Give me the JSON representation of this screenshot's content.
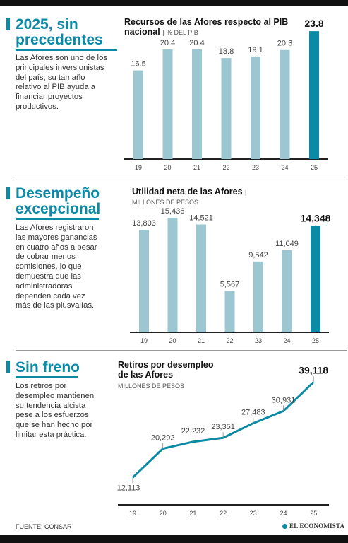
{
  "sections": [
    {
      "heading": [
        "2025, sin",
        "precedentes"
      ],
      "text": "Las Afores son uno de los principales inversionistas del país; su tamaño relativo al PIB ayuda a financiar proyectos productivos."
    },
    {
      "heading": [
        "Desempeño",
        "excepcional"
      ],
      "text": "Las Afores registraron las mayores ganancias en cuatro años a pesar de cobrar menos comisiones, lo que demuestra que las administradoras dependen cada vez más de las plusvalías."
    },
    {
      "heading": [
        "Sin freno"
      ],
      "text": "Los retiros por desempleo mantienen su tendencia alcista pese a los esfuerzos que se han hecho por limitar esta práctica."
    }
  ],
  "colors": {
    "accent": "#0b8aa6",
    "bar": "#9cc7d0",
    "highlight": "#0b8aa6",
    "line": "#0b8aa6"
  },
  "footer": {
    "source": "FUENTE: CONSAR",
    "logo": "EL ECONOMISTA"
  },
  "chart_data": [
    {
      "type": "bar",
      "title_line1": "Recursos de las Afores respecto al PIB",
      "title_line2": "nacional",
      "unit": "% DEL PIB",
      "categories": [
        "19",
        "20",
        "21",
        "22",
        "23",
        "24",
        "25"
      ],
      "values": [
        16.5,
        20.4,
        20.4,
        18.8,
        19.1,
        20.3,
        23.8
      ],
      "labels": [
        "16.5",
        "20.4",
        "20.4",
        "18.8",
        "19.1",
        "20.3",
        "23.8"
      ],
      "highlight_index": 6,
      "ylim": [
        0,
        25
      ]
    },
    {
      "type": "bar",
      "title_line1": "Utilidad neta de las Afores",
      "unit": "MILLONES DE PESOS",
      "categories": [
        "19",
        "20",
        "21",
        "22",
        "23",
        "24",
        "25"
      ],
      "values": [
        13803,
        15436,
        14521,
        5567,
        9542,
        11049,
        14348
      ],
      "labels": [
        "13,803",
        "15,436",
        "14,521",
        "5,567",
        "9,542",
        "11,049",
        "14,348"
      ],
      "highlight_index": 6,
      "ylim": [
        0,
        16000
      ]
    },
    {
      "type": "line",
      "title_line1": "Retiros por desempleo",
      "title_line2": "de las Afores",
      "unit": "MILLONES DE PESOS",
      "categories": [
        "19",
        "20",
        "21",
        "22",
        "23",
        "24",
        "25"
      ],
      "values": [
        12113,
        20292,
        22232,
        23351,
        27483,
        30931,
        39118
      ],
      "labels": [
        "12,113",
        "20,292",
        "22,232",
        "23,351",
        "27,483",
        "30,931",
        "39,118"
      ],
      "highlight_index": 6,
      "ylim": [
        10000,
        40000
      ]
    }
  ]
}
